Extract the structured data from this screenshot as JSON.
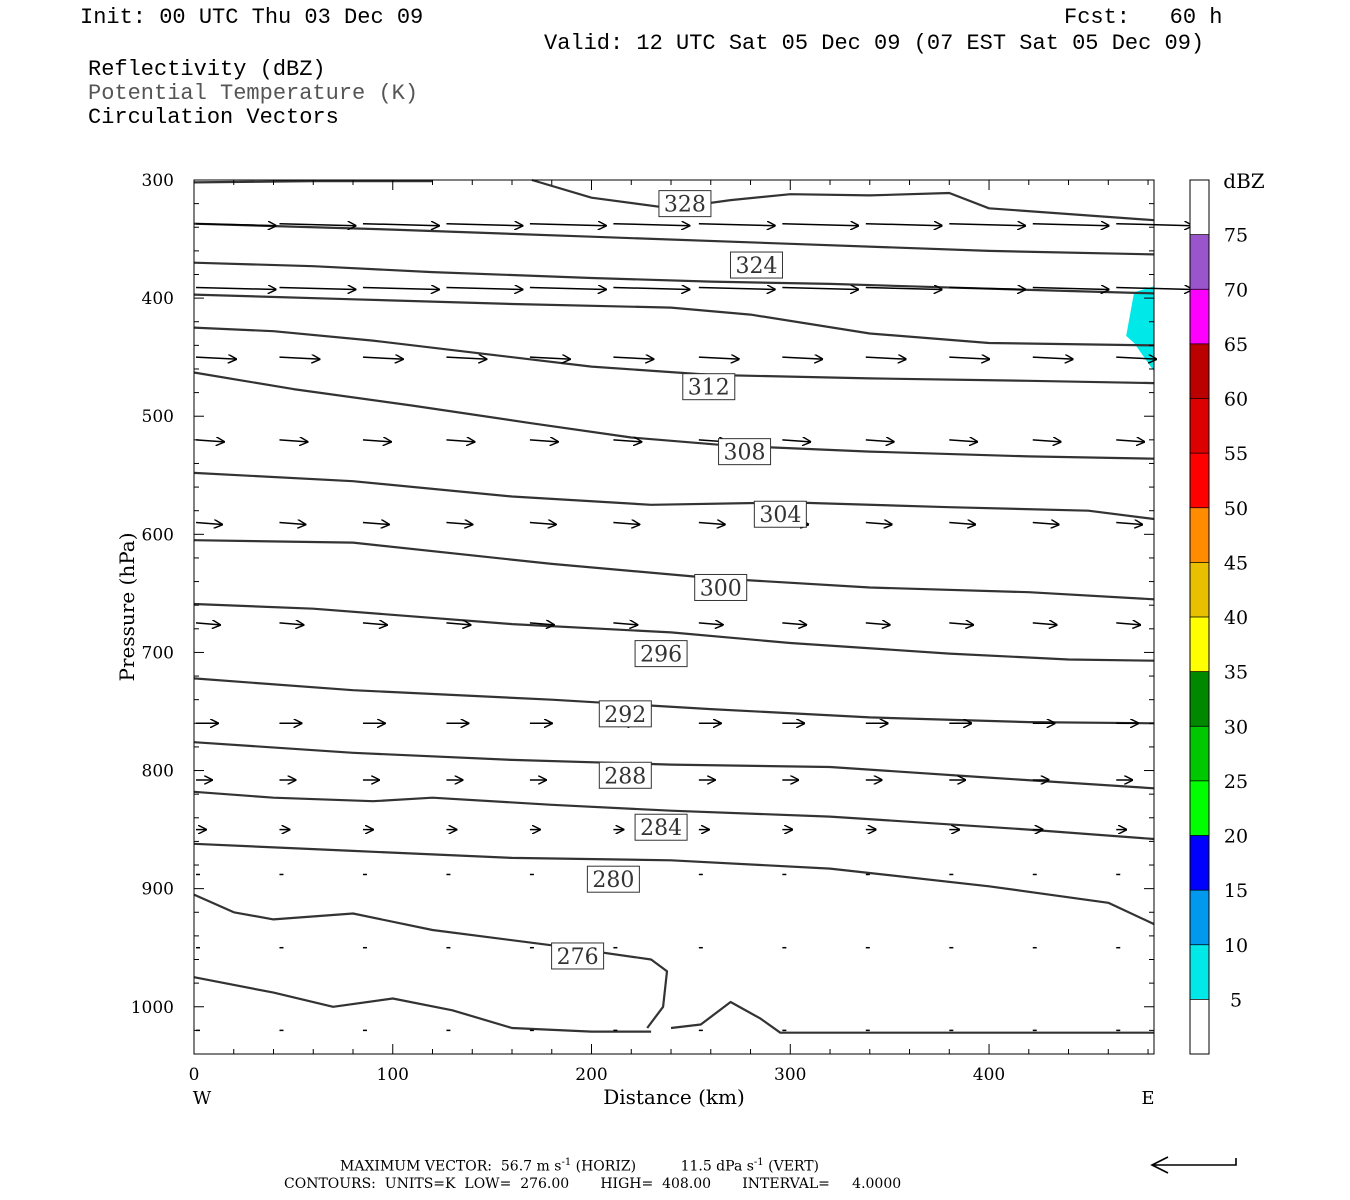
{
  "header": {
    "init": "Init: 00 UTC Thu 03 Dec 09",
    "fcst": "Fcst:   60 h",
    "valid": "Valid: 12 UTC Sat 05 Dec 09 (07 EST Sat 05 Dec 09)",
    "fields": [
      "Reflectivity (dBZ)",
      "Potential Temperature (K)",
      "Circulation Vectors"
    ]
  },
  "footer": {
    "max_vector_label": "MAXIMUM VECTOR:",
    "max_horiz_value": "56.7 m s",
    "max_horiz_unit": " (HORIZ)",
    "max_vert_value": "11.5 dPa s",
    "max_vert_unit": " (VERT)",
    "superscript": "-1",
    "contours": "CONTOURS:  UNITS=K  LOW=  276.00       HIGH=  408.00       INTERVAL=     4.0000"
  },
  "colors": {
    "contour": "#333333",
    "reflectivity_cyan": "#00e8e8"
  },
  "chart_data": {
    "type": "cross-section",
    "title": "",
    "xlabel": "Distance (km)",
    "ylabel": "Pressure (hPa)",
    "xlim": [
      0,
      483
    ],
    "ylim": [
      300,
      1040
    ],
    "y_scale": "linear-inverted",
    "x_ticks": [
      0,
      100,
      200,
      300,
      400
    ],
    "y_ticks": [
      300,
      400,
      500,
      600,
      700,
      800,
      900,
      1000
    ],
    "x_end_labels": {
      "left": "W",
      "right": "E"
    },
    "contour_labels": [
      {
        "value": "328",
        "x": 247,
        "p": 320
      },
      {
        "value": "324",
        "x": 283,
        "p": 372
      },
      {
        "value": "312",
        "x": 259,
        "p": 475
      },
      {
        "value": "308",
        "x": 277,
        "p": 530
      },
      {
        "value": "304",
        "x": 295,
        "p": 583
      },
      {
        "value": "300",
        "x": 265,
        "p": 645
      },
      {
        "value": "296",
        "x": 235,
        "p": 701
      },
      {
        "value": "292",
        "x": 217,
        "p": 752
      },
      {
        "value": "288",
        "x": 217,
        "p": 804
      },
      {
        "value": "284",
        "x": 235,
        "p": 848
      },
      {
        "value": "280",
        "x": 211,
        "p": 892
      },
      {
        "value": "276",
        "x": 193,
        "p": 957
      }
    ],
    "contours": [
      [
        [
          0,
          337
        ],
        [
          100,
          342
        ],
        [
          200,
          348
        ],
        [
          300,
          354
        ],
        [
          400,
          360
        ],
        [
          483,
          363
        ]
      ],
      [
        [
          0,
          370
        ],
        [
          60,
          373
        ],
        [
          120,
          378
        ],
        [
          200,
          383
        ],
        [
          260,
          386
        ],
        [
          320,
          388
        ],
        [
          400,
          392
        ],
        [
          483,
          396
        ]
      ],
      [
        [
          0,
          397
        ],
        [
          80,
          401
        ],
        [
          160,
          405
        ],
        [
          240,
          408
        ],
        [
          280,
          414
        ],
        [
          340,
          430
        ],
        [
          400,
          438
        ],
        [
          483,
          440
        ]
      ],
      [
        [
          0,
          425
        ],
        [
          40,
          428
        ],
        [
          90,
          436
        ],
        [
          150,
          448
        ],
        [
          200,
          458
        ],
        [
          260,
          465
        ],
        [
          340,
          468
        ],
        [
          420,
          470
        ],
        [
          483,
          472
        ]
      ],
      [
        [
          0,
          463
        ],
        [
          50,
          477
        ],
        [
          110,
          491
        ],
        [
          170,
          506
        ],
        [
          220,
          518
        ],
        [
          270,
          525
        ],
        [
          340,
          530
        ],
        [
          420,
          534
        ],
        [
          483,
          536
        ]
      ],
      [
        [
          0,
          548
        ],
        [
          80,
          555
        ],
        [
          160,
          568
        ],
        [
          230,
          575
        ],
        [
          300,
          573
        ],
        [
          380,
          577
        ],
        [
          450,
          580
        ],
        [
          483,
          587
        ]
      ],
      [
        [
          0,
          605
        ],
        [
          80,
          607
        ],
        [
          180,
          625
        ],
        [
          260,
          637
        ],
        [
          340,
          645
        ],
        [
          420,
          649
        ],
        [
          483,
          655
        ]
      ],
      [
        [
          0,
          659
        ],
        [
          60,
          663
        ],
        [
          160,
          676
        ],
        [
          240,
          683
        ],
        [
          300,
          692
        ],
        [
          380,
          701
        ],
        [
          440,
          706
        ],
        [
          483,
          707
        ]
      ],
      [
        [
          0,
          722
        ],
        [
          80,
          732
        ],
        [
          180,
          740
        ],
        [
          260,
          748
        ],
        [
          340,
          755
        ],
        [
          420,
          759
        ],
        [
          483,
          760
        ]
      ],
      [
        [
          0,
          776
        ],
        [
          80,
          785
        ],
        [
          160,
          791
        ],
        [
          240,
          795
        ],
        [
          320,
          797
        ],
        [
          400,
          806
        ],
        [
          483,
          815
        ]
      ],
      [
        [
          0,
          818
        ],
        [
          40,
          823
        ],
        [
          90,
          826
        ],
        [
          120,
          823
        ],
        [
          180,
          829
        ],
        [
          240,
          834
        ],
        [
          320,
          839
        ],
        [
          420,
          850
        ],
        [
          483,
          858
        ]
      ],
      [
        [
          0,
          862
        ],
        [
          80,
          868
        ],
        [
          160,
          874
        ],
        [
          240,
          876
        ],
        [
          320,
          883
        ],
        [
          400,
          898
        ],
        [
          460,
          912
        ],
        [
          483,
          930
        ]
      ],
      [
        [
          0,
          905
        ],
        [
          20,
          920
        ],
        [
          40,
          926
        ],
        [
          80,
          921
        ],
        [
          120,
          935
        ],
        [
          180,
          948
        ],
        [
          230,
          960
        ],
        [
          238,
          970
        ],
        [
          236,
          1000
        ],
        [
          228,
          1018
        ]
      ],
      [
        [
          0,
          975
        ],
        [
          40,
          988
        ],
        [
          70,
          1000
        ],
        [
          100,
          993
        ],
        [
          130,
          1003
        ],
        [
          160,
          1018
        ],
        [
          200,
          1021
        ],
        [
          230,
          1021
        ]
      ],
      [
        [
          240,
          1018
        ],
        [
          255,
          1015
        ],
        [
          270,
          996
        ],
        [
          285,
          1010
        ],
        [
          295,
          1022
        ],
        [
          330,
          1022
        ],
        [
          400,
          1022
        ],
        [
          483,
          1022
        ]
      ],
      [
        [
          0,
          302
        ],
        [
          60,
          301
        ],
        [
          120,
          301
        ]
      ],
      [
        [
          170,
          300
        ],
        [
          200,
          315
        ],
        [
          240,
          324
        ],
        [
          270,
          317
        ],
        [
          300,
          312
        ],
        [
          340,
          313
        ],
        [
          380,
          311
        ],
        [
          400,
          324
        ],
        [
          483,
          334
        ]
      ]
    ],
    "reflectivity_areas": [
      {
        "dbz": "5-10",
        "points": [
          [
            473,
            395
          ],
          [
            483,
            390
          ],
          [
            483,
            462
          ],
          [
            473,
            438
          ],
          [
            469,
            432
          ]
        ]
      }
    ],
    "vector_rows": [
      {
        "p": 337,
        "dx": 38
      },
      {
        "p": 391,
        "dx": 38
      },
      {
        "p": 450,
        "dx": 20
      },
      {
        "p": 520,
        "dx": 14
      },
      {
        "p": 590,
        "dx": 13
      },
      {
        "p": 675,
        "dx": 12
      },
      {
        "p": 760,
        "dx": 11
      },
      {
        "p": 808,
        "dx": 8
      },
      {
        "p": 850,
        "dx": 5
      },
      {
        "p": 888,
        "dx": 2
      },
      {
        "p": 950,
        "dx": 2
      },
      {
        "p": 1020,
        "dx": 2
      }
    ],
    "vector_x": [
      0,
      42,
      84,
      126,
      168,
      210,
      253,
      295,
      337,
      379,
      421,
      463
    ],
    "colorbar": {
      "unit": "dBZ",
      "labels": [
        "5",
        "10",
        "15",
        "20",
        "25",
        "30",
        "35",
        "40",
        "45",
        "50",
        "55",
        "60",
        "65",
        "70",
        "75"
      ],
      "colors": [
        "#ffffff",
        "#00e8e8",
        "#0099ee",
        "#0000ff",
        "#00ff00",
        "#00c800",
        "#008800",
        "#ffff00",
        "#e8c000",
        "#ff8c00",
        "#ff0000",
        "#dd0000",
        "#bb0000",
        "#ff00ff",
        "#9955cc",
        "#ffffff"
      ]
    }
  }
}
